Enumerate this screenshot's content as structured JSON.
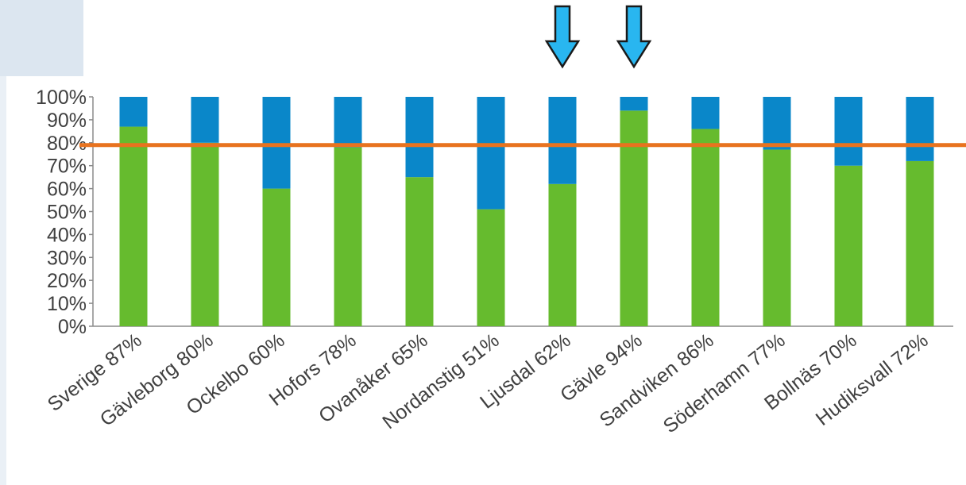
{
  "colors": {
    "primary": "#66bb2e",
    "remainder": "#0a87c9",
    "reference_line": "#e8731f",
    "arrow_fill": "#29b6f0",
    "arrow_stroke": "#1a1a1a"
  },
  "chart_data": {
    "type": "bar",
    "stacked": true,
    "categories": [
      "Sverige 87%",
      "Gävleborg 80%",
      "Ockelbo 60%",
      "Hofors 78%",
      "Ovanåker 65%",
      "Nordanstig 51%",
      "Ljusdal 62%",
      "Gävle 94%",
      "Sandviken 86%",
      "Söderhamn 77%",
      "Bollnäs 70%",
      "Hudiksvall 72%"
    ],
    "series": [
      {
        "values": [
          87,
          80,
          60,
          78,
          65,
          51,
          62,
          94,
          86,
          77,
          70,
          72
        ]
      },
      {
        "values": [
          13,
          20,
          40,
          22,
          35,
          49,
          38,
          6,
          14,
          23,
          30,
          28
        ]
      }
    ],
    "yticks": [
      "0%",
      "10%",
      "20%",
      "30%",
      "40%",
      "50%",
      "60%",
      "70%",
      "80%",
      "90%",
      "100%"
    ],
    "ylim": [
      0,
      100
    ],
    "reference_line": 79,
    "grid": false,
    "highlight_arrows": [
      "Ljusdal 62%",
      "Gävle 94%"
    ],
    "title": "",
    "xlabel": "",
    "ylabel": ""
  }
}
